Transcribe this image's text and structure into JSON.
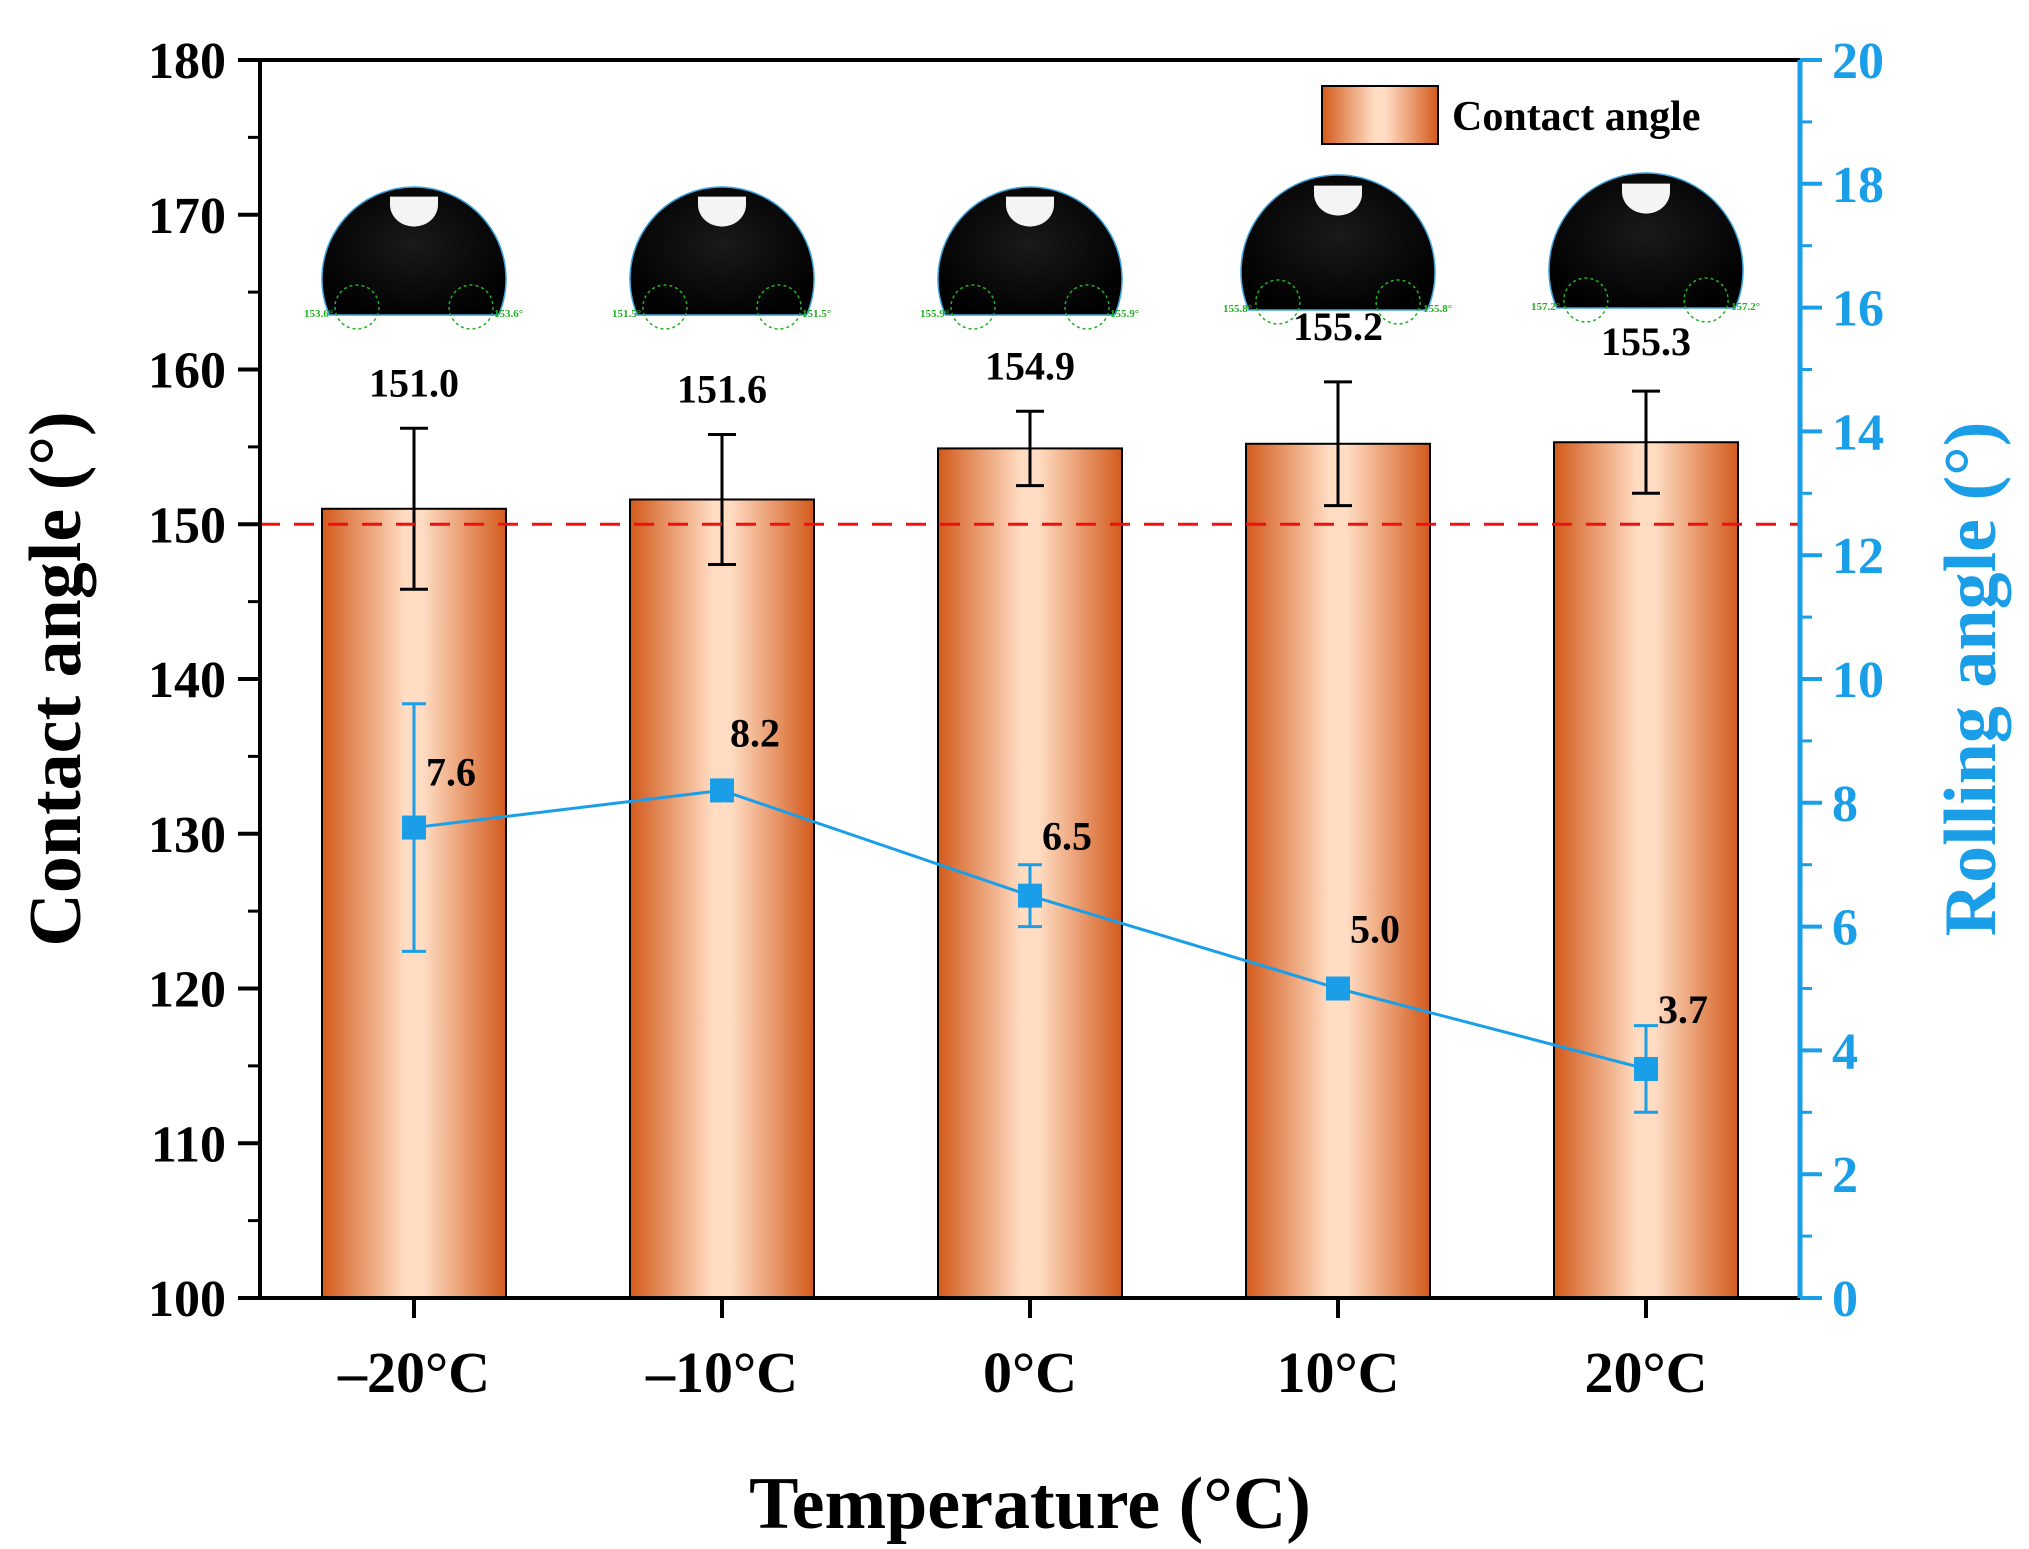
{
  "chart_data": {
    "type": "bar",
    "title": "",
    "categories": [
      "–20°C",
      "–10°C",
      "0°C",
      "10°C",
      "20°C"
    ],
    "xlabel": "Temperature (°C)",
    "ylabel": "Contact angle (°)",
    "y2label": "Rolling angle (°)",
    "ylim": [
      100,
      180
    ],
    "y2lim": [
      0,
      20
    ],
    "yticks": [
      100,
      110,
      120,
      130,
      140,
      150,
      160,
      170,
      180
    ],
    "y2ticks": [
      0,
      2,
      4,
      6,
      8,
      10,
      12,
      14,
      16,
      18,
      20
    ],
    "reference_line": 150,
    "legend": {
      "label": "Contact angle",
      "position": "top-right"
    },
    "series": [
      {
        "name": "Contact angle",
        "axis": "left",
        "kind": "bar",
        "values": [
          151.0,
          151.6,
          154.9,
          155.2,
          155.3
        ],
        "labels": [
          "151.0",
          "151.6",
          "154.9",
          "155.2",
          "155.3"
        ],
        "errors": [
          5.2,
          4.2,
          2.4,
          4.0,
          3.3
        ]
      },
      {
        "name": "Rolling angle",
        "axis": "right",
        "kind": "line",
        "values": [
          7.6,
          8.2,
          6.5,
          5.0,
          3.7
        ],
        "labels": [
          "7.6",
          "8.2",
          "6.5",
          "5.0",
          "3.7"
        ],
        "errors": [
          2.0,
          0.1,
          0.5,
          0.1,
          0.7
        ]
      }
    ],
    "droplet_images": [
      {
        "angle_label": "153.6°"
      },
      {
        "angle_label": "151.5°"
      },
      {
        "angle_label": "155.9°"
      },
      {
        "angle_label": "155.8°"
      },
      {
        "angle_label": "157.2°"
      }
    ],
    "colors": {
      "bar_edge": "#d35a1c",
      "bar_center": "#ffdcc2",
      "rolling": "#1a9ee8",
      "reference": "#ee1111",
      "axis": "#000000",
      "droplet_marker": "#22b022"
    }
  }
}
